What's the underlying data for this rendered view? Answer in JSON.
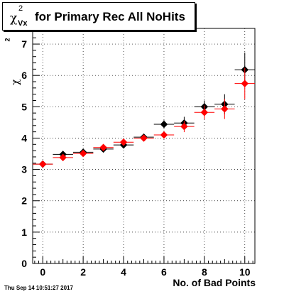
{
  "chart_data": {
    "type": "scatter",
    "title": {
      "symbol": "χ",
      "superscript": "2",
      "subscript": "Vx",
      "text": "for Primary Rec All NoHits"
    },
    "xlabel": "No. of Bad Points",
    "ylabel": {
      "symbol": "χ",
      "superscript": "2"
    },
    "xlim": [
      -0.5,
      10.5
    ],
    "ylim": [
      0,
      7.5
    ],
    "xticks": [
      "0",
      "2",
      "4",
      "6",
      "8",
      "10"
    ],
    "yticks": [
      "0",
      "1",
      "2",
      "3",
      "4",
      "5",
      "6",
      "7"
    ],
    "grid": true,
    "series": [
      {
        "color": "#000000",
        "x": [
          0,
          1,
          2,
          3,
          4,
          5,
          6,
          7,
          8,
          9,
          10
        ],
        "y": [
          3.17,
          3.48,
          3.55,
          3.65,
          3.78,
          4.03,
          4.44,
          4.48,
          5.0,
          5.08,
          6.18
        ],
        "yerr": [
          0.0,
          0.03,
          0.03,
          0.05,
          0.05,
          0.08,
          0.13,
          0.2,
          0.2,
          0.32,
          0.55
        ]
      },
      {
        "color": "#ff0000",
        "x": [
          0,
          1,
          2,
          3,
          4,
          5,
          6,
          7,
          8,
          9,
          10
        ],
        "y": [
          3.17,
          3.38,
          3.51,
          3.7,
          3.87,
          4.0,
          4.1,
          4.37,
          4.82,
          4.93,
          5.74
        ],
        "yerr": [
          0.0,
          0.03,
          0.03,
          0.04,
          0.05,
          0.07,
          0.1,
          0.18,
          0.22,
          0.32,
          0.5
        ]
      }
    ]
  },
  "footer": {
    "timestamp": "Thu Sep 14 10:51:27 2017"
  }
}
